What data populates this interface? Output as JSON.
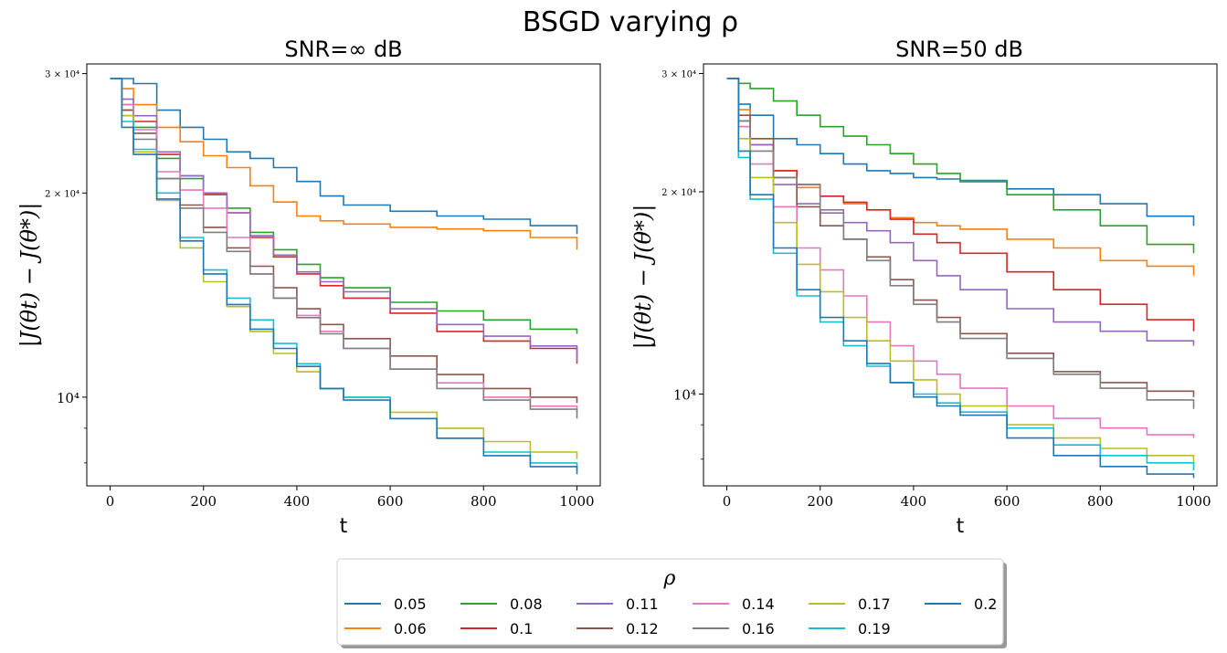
{
  "figure": {
    "suptitle": "BSGD varying ρ"
  },
  "legend": {
    "title": "ρ",
    "placement": "bottom-center",
    "entries": [
      {
        "label": "0.05",
        "color": "#1f77b4"
      },
      {
        "label": "0.06",
        "color": "#ff7f0e"
      },
      {
        "label": "0.08",
        "color": "#2ca02c"
      },
      {
        "label": "0.1",
        "color": "#d62728"
      },
      {
        "label": "0.11",
        "color": "#9467bd"
      },
      {
        "label": "0.12",
        "color": "#8c564b"
      },
      {
        "label": "0.14",
        "color": "#e377c2"
      },
      {
        "label": "0.16",
        "color": "#7f7f7f"
      },
      {
        "label": "0.17",
        "color": "#bcbd22"
      },
      {
        "label": "0.19",
        "color": "#17becf"
      },
      {
        "label": "0.2",
        "color": "#1f77b4"
      }
    ]
  },
  "chart_data": [
    {
      "type": "line",
      "title": "SNR=∞ dB",
      "xlabel": "t",
      "ylabel": "|J(θt) − J(θ*)|",
      "yscale": "log",
      "xlim": [
        -50,
        1050
      ],
      "ylim": [
        7400,
        31000
      ],
      "xticks": [
        {
          "value": 0,
          "label": "0"
        },
        {
          "value": 200,
          "label": "200"
        },
        {
          "value": 400,
          "label": "400"
        },
        {
          "value": 600,
          "label": "600"
        },
        {
          "value": 800,
          "label": "800"
        },
        {
          "value": 1000,
          "label": "1000"
        }
      ],
      "yticks_major": [
        {
          "value": 10000,
          "label": "10⁴"
        },
        {
          "value": 20000,
          "label": "2 × 10⁴"
        },
        {
          "value": 30000,
          "label": "3 × 10⁴"
        }
      ],
      "yticks_minor": [
        8000,
        9000
      ],
      "x": [
        0,
        25,
        50,
        100,
        150,
        200,
        250,
        300,
        350,
        400,
        450,
        500,
        600,
        700,
        800,
        900,
        1000
      ],
      "series": [
        {
          "name": "0.05",
          "values": [
            29500,
            29500,
            29000,
            26500,
            25000,
            24000,
            23000,
            22500,
            21800,
            20800,
            19800,
            19200,
            18800,
            18500,
            18300,
            17900,
            17400
          ]
        },
        {
          "name": "0.06",
          "values": [
            29500,
            28500,
            27000,
            25000,
            23800,
            22700,
            21800,
            20500,
            19400,
            18500,
            18200,
            18000,
            17800,
            17700,
            17600,
            17200,
            16500
          ]
        },
        {
          "name": "0.08",
          "values": [
            29500,
            26500,
            25000,
            22500,
            21000,
            19900,
            19000,
            17500,
            16500,
            15700,
            15000,
            14500,
            13800,
            13400,
            13000,
            12600,
            12400
          ]
        },
        {
          "name": "0.1",
          "values": [
            29500,
            27000,
            25500,
            22800,
            21200,
            19900,
            18700,
            17200,
            16100,
            15200,
            14600,
            14000,
            13300,
            12500,
            12100,
            11800,
            11200
          ]
        },
        {
          "name": "0.11",
          "values": [
            29500,
            27500,
            26000,
            23000,
            21200,
            20000,
            18700,
            17300,
            16200,
            15300,
            14800,
            14300,
            13500,
            12800,
            12300,
            11900,
            11300
          ]
        },
        {
          "name": "0.12",
          "values": [
            29500,
            26500,
            24500,
            21000,
            19200,
            17800,
            16600,
            15600,
            14500,
            13500,
            12800,
            12200,
            11500,
            10800,
            10300,
            10000,
            9800
          ]
        },
        {
          "name": "0.14",
          "values": [
            29500,
            27000,
            24800,
            21500,
            20200,
            19000,
            17200,
            15200,
            14000,
            13200,
            12500,
            11800,
            11000,
            10500,
            10000,
            9700,
            9500
          ]
        },
        {
          "name": "0.16",
          "values": [
            29500,
            26000,
            24000,
            21000,
            19000,
            17500,
            16400,
            15200,
            14000,
            13100,
            12400,
            11800,
            11000,
            10300,
            9900,
            9600,
            9300
          ]
        },
        {
          "name": "0.17",
          "values": [
            29500,
            26000,
            23000,
            19500,
            16600,
            14800,
            13600,
            12500,
            11600,
            10900,
            10300,
            10000,
            9500,
            9000,
            8600,
            8300,
            8100
          ]
        },
        {
          "name": "0.19",
          "values": [
            29500,
            25500,
            23200,
            20000,
            17200,
            15400,
            14000,
            13000,
            12000,
            11200,
            10300,
            10000,
            9300,
            8700,
            8300,
            8000,
            7800
          ]
        },
        {
          "name": "0.2",
          "values": [
            29500,
            25000,
            22800,
            19600,
            17000,
            15200,
            13700,
            12600,
            11800,
            11100,
            10300,
            9900,
            9300,
            8700,
            8200,
            7900,
            7700
          ]
        }
      ]
    },
    {
      "type": "line",
      "title": "SNR=50 dB",
      "xlabel": "t",
      "ylabel": "|J(θt) − J(θ*)|",
      "yscale": "log",
      "xlim": [
        -50,
        1050
      ],
      "ylim": [
        7300,
        31000
      ],
      "xticks": [
        {
          "value": 0,
          "label": "0"
        },
        {
          "value": 200,
          "label": "200"
        },
        {
          "value": 400,
          "label": "400"
        },
        {
          "value": 600,
          "label": "600"
        },
        {
          "value": 800,
          "label": "800"
        },
        {
          "value": 1000,
          "label": "1000"
        }
      ],
      "yticks_major": [
        {
          "value": 10000,
          "label": "10⁴"
        },
        {
          "value": 20000,
          "label": "2 × 10⁴"
        },
        {
          "value": 30000,
          "label": "3 × 10⁴"
        }
      ],
      "yticks_minor": [
        8000,
        9000
      ],
      "x": [
        0,
        25,
        50,
        100,
        150,
        200,
        250,
        300,
        350,
        400,
        450,
        500,
        600,
        700,
        800,
        900,
        1000
      ],
      "series": [
        {
          "name": "0.05",
          "values": [
            29500,
            27000,
            26000,
            24000,
            23500,
            22800,
            22000,
            21500,
            21300,
            21000,
            20900,
            20700,
            20200,
            19800,
            19200,
            18400,
            17800
          ]
        },
        {
          "name": "0.06",
          "values": [
            29500,
            26500,
            24000,
            21500,
            20300,
            19700,
            19200,
            18800,
            18300,
            18000,
            17800,
            17600,
            17000,
            16500,
            15800,
            15500,
            15000
          ]
        },
        {
          "name": "0.08",
          "values": [
            29500,
            29000,
            28500,
            27300,
            26000,
            25000,
            24200,
            23500,
            22800,
            22000,
            21300,
            20800,
            19800,
            18800,
            17800,
            16700,
            16200
          ]
        },
        {
          "name": "0.1",
          "values": [
            29500,
            25000,
            23500,
            21500,
            20500,
            19700,
            19300,
            18800,
            18200,
            17300,
            16800,
            16200,
            15200,
            14300,
            13600,
            12900,
            12400
          ]
        },
        {
          "name": "0.11",
          "values": [
            29500,
            25500,
            23500,
            20500,
            19200,
            18600,
            18000,
            17500,
            16800,
            15800,
            15000,
            14300,
            13400,
            12800,
            12400,
            12000,
            11800
          ]
        },
        {
          "name": "0.12",
          "values": [
            29500,
            26000,
            24000,
            21000,
            19000,
            17800,
            17000,
            16000,
            14800,
            13800,
            13000,
            12300,
            11500,
            10800,
            10400,
            10100,
            9900
          ]
        },
        {
          "name": "0.14",
          "values": [
            29500,
            25000,
            22000,
            19000,
            16500,
            15300,
            14000,
            12800,
            11800,
            11200,
            10700,
            10200,
            9600,
            9200,
            8900,
            8700,
            8600
          ]
        },
        {
          "name": "0.16",
          "values": [
            29500,
            25500,
            23000,
            21000,
            20500,
            18800,
            17000,
            15800,
            14500,
            13600,
            12800,
            12100,
            11300,
            10700,
            10200,
            9800,
            9500
          ]
        },
        {
          "name": "0.17",
          "values": [
            29500,
            24000,
            21000,
            18000,
            15600,
            14200,
            13000,
            12000,
            11200,
            10500,
            10000,
            9600,
            9000,
            8600,
            8300,
            8100,
            7900
          ]
        },
        {
          "name": "0.19",
          "values": [
            29500,
            22500,
            19500,
            16200,
            14000,
            12800,
            11800,
            11000,
            10400,
            10000,
            9700,
            9400,
            8900,
            8400,
            8100,
            7900,
            7700
          ]
        },
        {
          "name": "0.2",
          "values": [
            29500,
            23000,
            19800,
            16500,
            14300,
            13000,
            12000,
            11100,
            10400,
            9900,
            9600,
            9300,
            8600,
            8100,
            7800,
            7600,
            7500
          ]
        }
      ]
    }
  ]
}
